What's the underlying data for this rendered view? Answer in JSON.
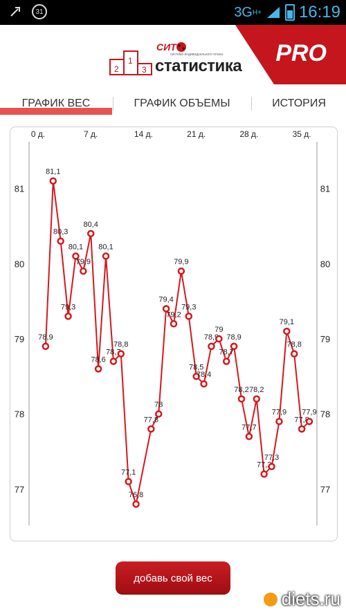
{
  "status_bar": {
    "network_label": "3G",
    "network_sup": "H+",
    "time": "16:19",
    "calendar_badge": "31",
    "icons": [
      "usb-icon",
      "calendar-icon",
      "signal-icon",
      "battery-icon"
    ]
  },
  "header": {
    "brand": "СИТ",
    "title": "статистика",
    "subtitle": "система индивидуального плана",
    "pro_label": "PRO",
    "colors": {
      "accent": "#c4161c"
    }
  },
  "tabs": [
    {
      "label": "ГРАФИК ВЕС",
      "active": true
    },
    {
      "label": "ГРАФИК ОБЪЕМЫ",
      "active": false
    },
    {
      "label": "ИСТОРИЯ",
      "active": false
    }
  ],
  "chart_data": {
    "type": "line",
    "x_ticks": [
      {
        "label": "0 д.",
        "value": 0
      },
      {
        "label": "7 д.",
        "value": 7
      },
      {
        "label": "14 д.",
        "value": 14
      },
      {
        "label": "21 д.",
        "value": 21
      },
      {
        "label": "28 д.",
        "value": 28
      },
      {
        "label": "35 д.",
        "value": 35
      }
    ],
    "y_ticks": [
      {
        "label": "81",
        "value": 81
      },
      {
        "label": "80",
        "value": 80
      },
      {
        "label": "79",
        "value": 79
      },
      {
        "label": "78",
        "value": 78
      },
      {
        "label": "77",
        "value": 77
      }
    ],
    "xlim": [
      0,
      36
    ],
    "ylim": [
      76.7,
      81.3
    ],
    "series": [
      {
        "color": "#d4171c",
        "points": [
          {
            "x": 1,
            "y": 78.9,
            "label": "78,9"
          },
          {
            "x": 2,
            "y": 81.1,
            "label": "81,1"
          },
          {
            "x": 3,
            "y": 80.3,
            "label": "80,3"
          },
          {
            "x": 4,
            "y": 79.3,
            "label": "79,3"
          },
          {
            "x": 5,
            "y": 80.1,
            "label": "80,1"
          },
          {
            "x": 6,
            "y": 79.9,
            "label": "79,9"
          },
          {
            "x": 7,
            "y": 80.4,
            "label": "80,4"
          },
          {
            "x": 8,
            "y": 78.6,
            "label": "78,6"
          },
          {
            "x": 9,
            "y": 80.1,
            "label": "80,1"
          },
          {
            "x": 10,
            "y": 78.7,
            "label": "78,7"
          },
          {
            "x": 11,
            "y": 78.8,
            "label": "78,8"
          },
          {
            "x": 12,
            "y": 77.1,
            "label": "77,1"
          },
          {
            "x": 13,
            "y": 76.8,
            "label": "76,8"
          },
          {
            "x": 15,
            "y": 77.8,
            "label": "77,8"
          },
          {
            "x": 16,
            "y": 78.0,
            "label": "78"
          },
          {
            "x": 17,
            "y": 79.4,
            "label": "79,4"
          },
          {
            "x": 18,
            "y": 79.2,
            "label": "79,2"
          },
          {
            "x": 19,
            "y": 79.9,
            "label": "79,9"
          },
          {
            "x": 20,
            "y": 79.3,
            "label": "79,3"
          },
          {
            "x": 21,
            "y": 78.5,
            "label": "78,5"
          },
          {
            "x": 22,
            "y": 78.4,
            "label": "78,4"
          },
          {
            "x": 23,
            "y": 78.9,
            "label": "78,9"
          },
          {
            "x": 24,
            "y": 79.0,
            "label": "79"
          },
          {
            "x": 25,
            "y": 78.7,
            "label": "78,7"
          },
          {
            "x": 26,
            "y": 78.9,
            "label": "78,9"
          },
          {
            "x": 27,
            "y": 78.2,
            "label": "78,2"
          },
          {
            "x": 28,
            "y": 77.7,
            "label": "77,7"
          },
          {
            "x": 29,
            "y": 78.2,
            "label": "78,2"
          },
          {
            "x": 30,
            "y": 77.2,
            "label": "77,2"
          },
          {
            "x": 31,
            "y": 77.3,
            "label": "77,3"
          },
          {
            "x": 32,
            "y": 77.9,
            "label": "77,9"
          },
          {
            "x": 33,
            "y": 79.1,
            "label": "79,1"
          },
          {
            "x": 34,
            "y": 78.8,
            "label": "78,8"
          },
          {
            "x": 35,
            "y": 77.8,
            "label": "77,8"
          },
          {
            "x": 36,
            "y": 77.9,
            "label": "77,9"
          }
        ]
      }
    ]
  },
  "actions": {
    "add_weight_label": "добавь свой вес"
  },
  "watermark": {
    "text": "diets.ru"
  }
}
